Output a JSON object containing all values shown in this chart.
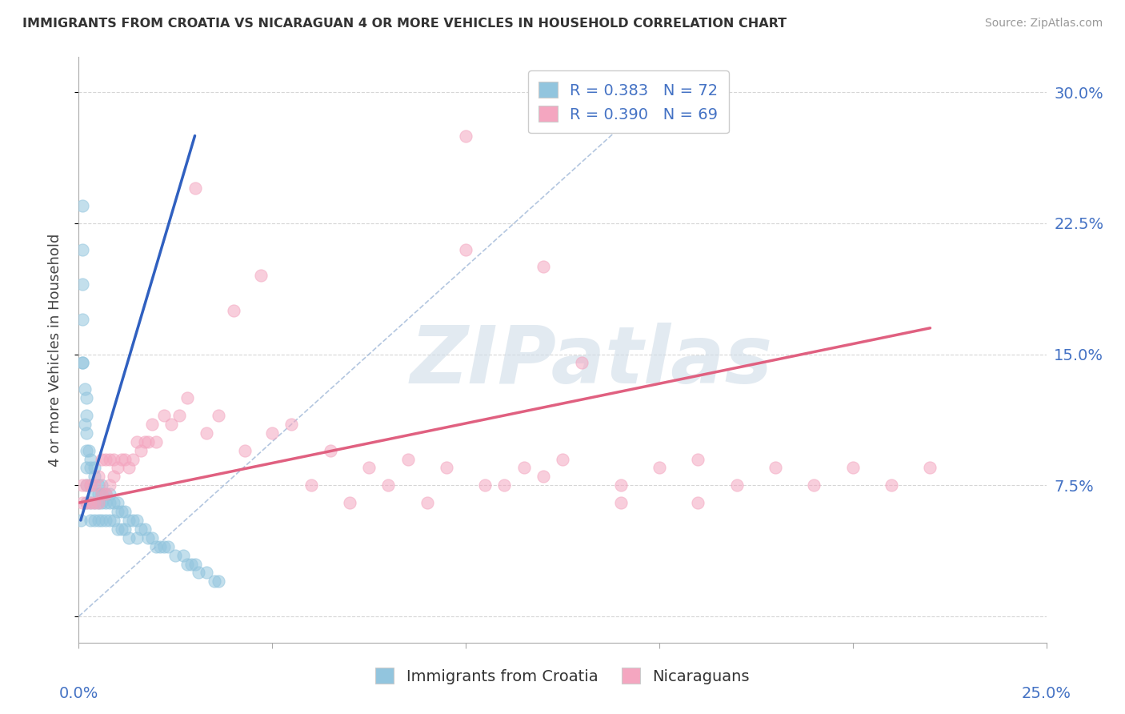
{
  "title": "IMMIGRANTS FROM CROATIA VS NICARAGUAN 4 OR MORE VEHICLES IN HOUSEHOLD CORRELATION CHART",
  "source": "Source: ZipAtlas.com",
  "ylabel_label": "4 or more Vehicles in Household",
  "legend_blue_r": 0.383,
  "legend_blue_n": 72,
  "legend_pink_r": 0.39,
  "legend_pink_n": 69,
  "blue_color": "#92c5de",
  "pink_color": "#f4a6c0",
  "trend_blue_color": "#3060c0",
  "trend_pink_color": "#e06080",
  "dashed_line_color": "#a0b8d8",
  "watermark": "ZIPatlas",
  "xmin": 0.0,
  "xmax": 0.25,
  "ymin": -0.015,
  "ymax": 0.32,
  "blue_scatter_x": [
    0.0005,
    0.001,
    0.001,
    0.001,
    0.001,
    0.001,
    0.0015,
    0.0015,
    0.002,
    0.002,
    0.002,
    0.002,
    0.002,
    0.002,
    0.0025,
    0.003,
    0.003,
    0.003,
    0.003,
    0.003,
    0.004,
    0.004,
    0.004,
    0.004,
    0.004,
    0.005,
    0.005,
    0.005,
    0.005,
    0.006,
    0.006,
    0.006,
    0.006,
    0.007,
    0.007,
    0.007,
    0.008,
    0.008,
    0.008,
    0.009,
    0.009,
    0.01,
    0.01,
    0.01,
    0.011,
    0.011,
    0.012,
    0.012,
    0.013,
    0.013,
    0.014,
    0.015,
    0.015,
    0.016,
    0.017,
    0.018,
    0.019,
    0.02,
    0.021,
    0.022,
    0.023,
    0.025,
    0.027,
    0.028,
    0.029,
    0.03,
    0.031,
    0.033,
    0.035,
    0.036,
    0.001,
    0.002
  ],
  "blue_scatter_y": [
    0.055,
    0.235,
    0.21,
    0.19,
    0.17,
    0.145,
    0.13,
    0.11,
    0.115,
    0.105,
    0.095,
    0.085,
    0.075,
    0.065,
    0.095,
    0.09,
    0.085,
    0.075,
    0.065,
    0.055,
    0.085,
    0.08,
    0.07,
    0.065,
    0.055,
    0.075,
    0.07,
    0.065,
    0.055,
    0.075,
    0.07,
    0.065,
    0.055,
    0.07,
    0.065,
    0.055,
    0.07,
    0.065,
    0.055,
    0.065,
    0.055,
    0.065,
    0.06,
    0.05,
    0.06,
    0.05,
    0.06,
    0.05,
    0.055,
    0.045,
    0.055,
    0.055,
    0.045,
    0.05,
    0.05,
    0.045,
    0.045,
    0.04,
    0.04,
    0.04,
    0.04,
    0.035,
    0.035,
    0.03,
    0.03,
    0.03,
    0.025,
    0.025,
    0.02,
    0.02,
    0.145,
    0.125
  ],
  "pink_scatter_x": [
    0.001,
    0.001,
    0.002,
    0.002,
    0.003,
    0.003,
    0.004,
    0.004,
    0.005,
    0.005,
    0.006,
    0.006,
    0.007,
    0.007,
    0.008,
    0.008,
    0.009,
    0.009,
    0.01,
    0.011,
    0.012,
    0.013,
    0.014,
    0.015,
    0.016,
    0.017,
    0.018,
    0.019,
    0.02,
    0.022,
    0.024,
    0.026,
    0.028,
    0.03,
    0.033,
    0.036,
    0.04,
    0.043,
    0.047,
    0.05,
    0.055,
    0.06,
    0.065,
    0.07,
    0.075,
    0.08,
    0.085,
    0.09,
    0.095,
    0.1,
    0.105,
    0.11,
    0.115,
    0.12,
    0.125,
    0.13,
    0.14,
    0.15,
    0.16,
    0.17,
    0.18,
    0.19,
    0.2,
    0.21,
    0.22,
    0.1,
    0.12,
    0.14,
    0.16
  ],
  "pink_scatter_y": [
    0.065,
    0.075,
    0.065,
    0.075,
    0.065,
    0.075,
    0.065,
    0.075,
    0.065,
    0.08,
    0.07,
    0.09,
    0.07,
    0.09,
    0.075,
    0.09,
    0.08,
    0.09,
    0.085,
    0.09,
    0.09,
    0.085,
    0.09,
    0.1,
    0.095,
    0.1,
    0.1,
    0.11,
    0.1,
    0.115,
    0.11,
    0.115,
    0.125,
    0.245,
    0.105,
    0.115,
    0.175,
    0.095,
    0.195,
    0.105,
    0.11,
    0.075,
    0.095,
    0.065,
    0.085,
    0.075,
    0.09,
    0.065,
    0.085,
    0.275,
    0.075,
    0.075,
    0.085,
    0.08,
    0.09,
    0.145,
    0.075,
    0.085,
    0.09,
    0.075,
    0.085,
    0.075,
    0.085,
    0.075,
    0.085,
    0.21,
    0.2,
    0.065,
    0.065
  ],
  "blue_trend_x": [
    0.0005,
    0.03
  ],
  "blue_trend_y": [
    0.055,
    0.275
  ],
  "pink_trend_x": [
    0.0,
    0.22
  ],
  "pink_trend_y": [
    0.065,
    0.165
  ],
  "dash_line_x": [
    0.0,
    0.155
  ],
  "dash_line_y": [
    0.0,
    0.31
  ]
}
